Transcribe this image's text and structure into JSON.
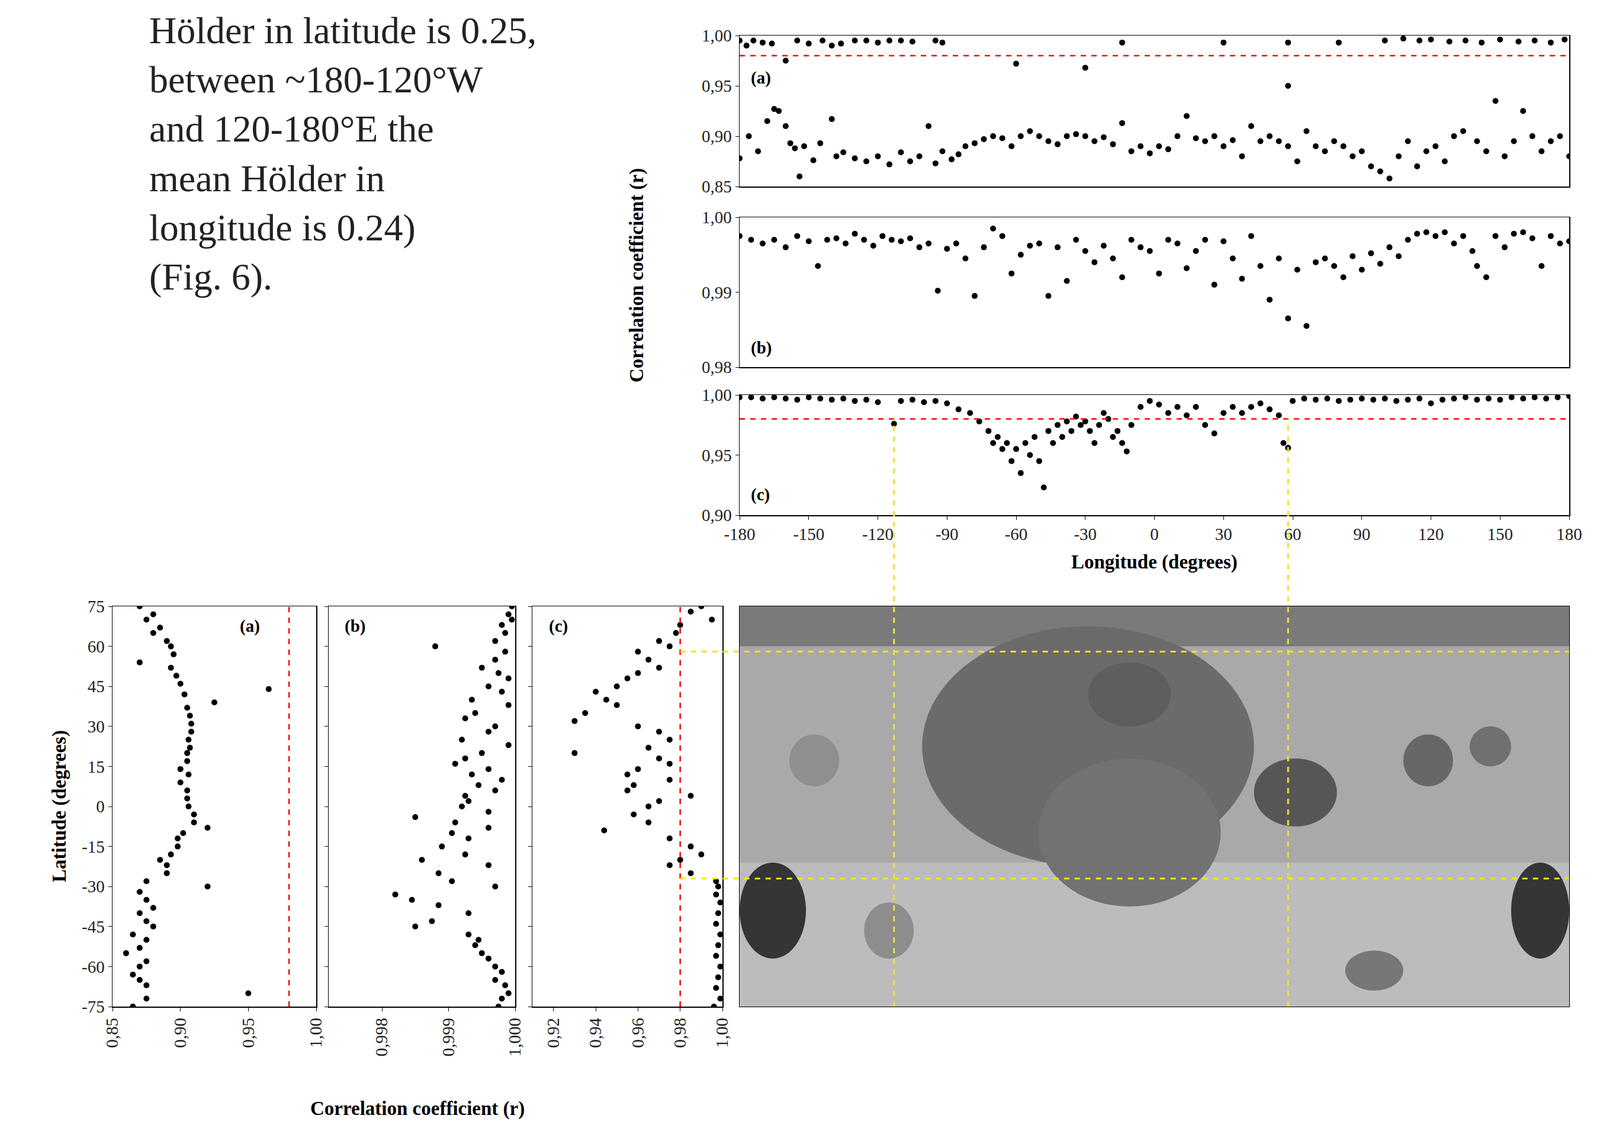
{
  "text_block": [
    "Hölder in latitude is 0.25,",
    "between ~180-120°W",
    "and 120-180°E the",
    "mean Hölder in",
    "longitude is 0.24)",
    "(Fig. 6)."
  ],
  "chart_data": [
    {
      "type": "scatter",
      "label": "(a)",
      "color": "#000000",
      "marker": "circle",
      "grid": false,
      "tick_labels": "y",
      "xlim": [
        -180,
        180
      ],
      "ylim": [
        0.85,
        1.0
      ],
      "yticks": [
        {
          "value": 0.85,
          "label": "0,85"
        },
        {
          "value": 0.9,
          "label": "0,90"
        },
        {
          "value": 0.95,
          "label": "0,95"
        },
        {
          "value": 1.0,
          "label": "1,00"
        }
      ],
      "reference_line": {
        "value": 0.98,
        "color": "#ff0000",
        "line_style": "dashed"
      },
      "x": [
        -180,
        -176,
        -172,
        -168,
        -165,
        -163,
        -160,
        -158,
        -156,
        -154,
        -152,
        -148,
        -145,
        -140,
        -138,
        -135,
        -130,
        -125,
        -120,
        -115,
        -110,
        -106,
        -102,
        -98,
        -95,
        -92,
        -88,
        -85,
        -82,
        -78,
        -74,
        -70,
        -66,
        -62,
        -58,
        -54,
        -50,
        -46,
        -42,
        -38,
        -34,
        -30,
        -26,
        -22,
        -18,
        -14,
        -10,
        -6,
        -2,
        2,
        6,
        10,
        14,
        18,
        22,
        26,
        30,
        34,
        38,
        42,
        46,
        50,
        54,
        58,
        62,
        66,
        70,
        74,
        78,
        82,
        86,
        90,
        94,
        98,
        102,
        106,
        110,
        114,
        118,
        122,
        126,
        130,
        134,
        140,
        144,
        148,
        152,
        156,
        160,
        164,
        168,
        172,
        176,
        180,
        -180,
        -177,
        -174,
        -170,
        -166,
        -160,
        -155,
        -150,
        -144,
        -140,
        -136,
        -130,
        -125,
        -120,
        -115,
        -110,
        -105,
        -95,
        -92,
        -60,
        -30,
        -14,
        30,
        58,
        58,
        80,
        100,
        108,
        115,
        120,
        128,
        135,
        142,
        150,
        158,
        165,
        172,
        178
      ],
      "values": [
        0.878,
        0.9,
        0.885,
        0.915,
        0.927,
        0.925,
        0.91,
        0.893,
        0.888,
        0.86,
        0.89,
        0.876,
        0.893,
        0.917,
        0.88,
        0.884,
        0.878,
        0.875,
        0.88,
        0.872,
        0.884,
        0.875,
        0.88,
        0.91,
        0.873,
        0.885,
        0.877,
        0.882,
        0.89,
        0.893,
        0.897,
        0.9,
        0.898,
        0.89,
        0.9,
        0.905,
        0.9,
        0.895,
        0.892,
        0.9,
        0.902,
        0.9,
        0.895,
        0.899,
        0.892,
        0.913,
        0.885,
        0.89,
        0.883,
        0.89,
        0.887,
        0.9,
        0.92,
        0.898,
        0.895,
        0.9,
        0.89,
        0.896,
        0.88,
        0.91,
        0.895,
        0.9,
        0.895,
        0.89,
        0.875,
        0.905,
        0.89,
        0.885,
        0.895,
        0.89,
        0.88,
        0.885,
        0.87,
        0.865,
        0.858,
        0.88,
        0.895,
        0.87,
        0.885,
        0.89,
        0.875,
        0.9,
        0.905,
        0.895,
        0.885,
        0.935,
        0.88,
        0.895,
        0.925,
        0.9,
        0.885,
        0.895,
        0.9,
        0.88,
        0.995,
        0.99,
        0.995,
        0.993,
        0.992,
        0.975,
        0.995,
        0.992,
        0.995,
        0.99,
        0.992,
        0.995,
        0.995,
        0.993,
        0.995,
        0.995,
        0.994,
        0.995,
        0.993,
        0.972,
        0.968,
        0.993,
        0.993,
        0.993,
        0.95,
        0.993,
        0.995,
        0.997,
        0.995,
        0.996,
        0.994,
        0.995,
        0.993,
        0.996,
        0.994,
        0.995,
        0.993,
        0.996
      ]
    },
    {
      "type": "scatter",
      "label": "(b)",
      "color": "#000000",
      "marker": "circle",
      "grid": false,
      "tick_labels": "y",
      "y_label": "Correlation coefficient (r)",
      "xlim": [
        -180,
        180
      ],
      "ylim": [
        0.98,
        1.0
      ],
      "yticks": [
        {
          "value": 0.98,
          "label": "0,98"
        },
        {
          "value": 0.99,
          "label": "0,99"
        },
        {
          "value": 1.0,
          "label": "1,00"
        }
      ],
      "x": [
        -180,
        -175,
        -170,
        -165,
        -160,
        -155,
        -150,
        -146,
        -142,
        -138,
        -134,
        -130,
        -126,
        -122,
        -118,
        -114,
        -110,
        -106,
        -102,
        -98,
        -94,
        -90,
        -86,
        -82,
        -78,
        -74,
        -70,
        -66,
        -62,
        -58,
        -54,
        -50,
        -46,
        -42,
        -38,
        -34,
        -30,
        -26,
        -22,
        -18,
        -14,
        -10,
        -6,
        -2,
        2,
        6,
        10,
        14,
        18,
        22,
        26,
        30,
        34,
        38,
        42,
        46,
        50,
        54,
        58,
        62,
        66,
        70,
        74,
        78,
        82,
        86,
        90,
        94,
        98,
        102,
        106,
        110,
        114,
        118,
        122,
        126,
        130,
        134,
        138,
        140,
        144,
        148,
        152,
        156,
        160,
        164,
        168,
        172,
        176,
        180
      ],
      "values": [
        0.9975,
        0.997,
        0.9965,
        0.997,
        0.996,
        0.9975,
        0.9968,
        0.9935,
        0.997,
        0.9972,
        0.9965,
        0.9978,
        0.997,
        0.9962,
        0.9975,
        0.997,
        0.9968,
        0.9972,
        0.996,
        0.9965,
        0.9902,
        0.9958,
        0.9965,
        0.9945,
        0.9895,
        0.996,
        0.9985,
        0.9975,
        0.9925,
        0.995,
        0.9962,
        0.9965,
        0.9895,
        0.996,
        0.9915,
        0.997,
        0.9955,
        0.994,
        0.9962,
        0.9945,
        0.992,
        0.997,
        0.996,
        0.9955,
        0.9925,
        0.997,
        0.9965,
        0.9932,
        0.9955,
        0.997,
        0.991,
        0.9968,
        0.9945,
        0.9918,
        0.9975,
        0.9935,
        0.989,
        0.9945,
        0.9865,
        0.993,
        0.9855,
        0.994,
        0.9945,
        0.9935,
        0.992,
        0.9948,
        0.993,
        0.9952,
        0.9938,
        0.996,
        0.9948,
        0.997,
        0.9978,
        0.998,
        0.9975,
        0.998,
        0.9965,
        0.9975,
        0.9955,
        0.9935,
        0.992,
        0.9975,
        0.996,
        0.9978,
        0.998,
        0.9972,
        0.9935,
        0.9975,
        0.9965,
        0.9968
      ]
    },
    {
      "type": "scatter",
      "label": "(c)",
      "color": "#000000",
      "marker": "circle",
      "grid": false,
      "x_label": "Longitude (degrees)",
      "xlim": [
        -180,
        180
      ],
      "ylim": [
        0.9,
        1.0
      ],
      "xticks": [
        -180,
        -150,
        -120,
        -90,
        -60,
        -30,
        0,
        30,
        60,
        90,
        120,
        150,
        180
      ],
      "yticks": [
        {
          "value": 0.9,
          "label": "0,90"
        },
        {
          "value": 0.95,
          "label": "0,95"
        },
        {
          "value": 1.0,
          "label": "1,00"
        }
      ],
      "reference_line": {
        "value": 0.98,
        "color": "#ff0000",
        "line_style": "dashed"
      },
      "x": [
        -180,
        -175,
        -170,
        -165,
        -160,
        -155,
        -150,
        -145,
        -140,
        -135,
        -130,
        -125,
        -120,
        -113,
        -110,
        -105,
        -100,
        -95,
        -90,
        -85,
        -80,
        -76,
        -72,
        -70,
        -68,
        -66,
        -64,
        -62,
        -60,
        -58,
        -56,
        -54,
        -52,
        -50,
        -48,
        -46,
        -44,
        -42,
        -40,
        -38,
        -36,
        -34,
        -32,
        -30,
        -28,
        -26,
        -24,
        -22,
        -20,
        -18,
        -16,
        -14,
        -12,
        -10,
        -6,
        -2,
        2,
        6,
        10,
        14,
        18,
        22,
        26,
        30,
        34,
        38,
        42,
        46,
        50,
        54,
        56,
        58,
        60,
        65,
        70,
        75,
        80,
        85,
        90,
        95,
        100,
        105,
        110,
        115,
        120,
        125,
        130,
        135,
        140,
        145,
        150,
        155,
        160,
        165,
        170,
        175,
        180
      ],
      "values": [
        0.998,
        0.998,
        0.997,
        0.998,
        0.997,
        0.996,
        0.998,
        0.997,
        0.996,
        0.997,
        0.995,
        0.996,
        0.994,
        0.976,
        0.995,
        0.996,
        0.994,
        0.995,
        0.993,
        0.988,
        0.985,
        0.978,
        0.97,
        0.96,
        0.965,
        0.955,
        0.96,
        0.945,
        0.955,
        0.935,
        0.96,
        0.95,
        0.965,
        0.945,
        0.923,
        0.97,
        0.96,
        0.975,
        0.965,
        0.978,
        0.97,
        0.982,
        0.975,
        0.978,
        0.97,
        0.96,
        0.975,
        0.985,
        0.98,
        0.965,
        0.97,
        0.96,
        0.953,
        0.975,
        0.99,
        0.995,
        0.992,
        0.985,
        0.99,
        0.983,
        0.99,
        0.975,
        0.968,
        0.985,
        0.99,
        0.985,
        0.99,
        0.993,
        0.988,
        0.983,
        0.96,
        0.956,
        0.995,
        0.997,
        0.996,
        0.997,
        0.995,
        0.996,
        0.997,
        0.996,
        0.997,
        0.995,
        0.996,
        0.997,
        0.993,
        0.996,
        0.997,
        0.998,
        0.996,
        0.997,
        0.996,
        0.998,
        0.997,
        0.998,
        0.997,
        0.998,
        0.999
      ]
    },
    {
      "type": "scatter",
      "label": "(a)",
      "color": "#000000",
      "marker": "circle",
      "grid": false,
      "y_label": "Latitude (degrees)",
      "xlim": [
        0.85,
        1.0
      ],
      "ylim": [
        -75,
        75
      ],
      "xticks": [
        {
          "value": 0.85,
          "label": "0,85"
        },
        {
          "value": 0.9,
          "label": "0,90"
        },
        {
          "value": 0.95,
          "label": "0,95"
        },
        {
          "value": 1.0,
          "label": "1,00"
        }
      ],
      "yticks": [
        -75,
        -60,
        -45,
        -30,
        -15,
        0,
        15,
        30,
        45,
        60,
        75
      ],
      "reference_line": {
        "value": 0.98,
        "color": "#ff0000",
        "line_style": "dashed"
      },
      "y": [
        75,
        72,
        70,
        67,
        65,
        62,
        60,
        57,
        54,
        52,
        49,
        46,
        44,
        42,
        39,
        37,
        34,
        31,
        28,
        25,
        22,
        20,
        17,
        14,
        12,
        9,
        6,
        3,
        0,
        -3,
        -6,
        -8,
        -10,
        -12,
        -15,
        -18,
        -20,
        -22,
        -25,
        -28,
        -30,
        -32,
        -35,
        -38,
        -40,
        -43,
        -45,
        -48,
        -50,
        -53,
        -55,
        -58,
        -60,
        -63,
        -65,
        -67,
        -70,
        -72,
        -75
      ],
      "values": [
        0.87,
        0.88,
        0.875,
        0.885,
        0.88,
        0.89,
        0.893,
        0.895,
        0.87,
        0.893,
        0.897,
        0.9,
        0.965,
        0.903,
        0.925,
        0.905,
        0.907,
        0.908,
        0.908,
        0.906,
        0.907,
        0.905,
        0.905,
        0.9,
        0.906,
        0.9,
        0.905,
        0.905,
        0.906,
        0.91,
        0.91,
        0.92,
        0.902,
        0.898,
        0.898,
        0.893,
        0.885,
        0.89,
        0.89,
        0.875,
        0.92,
        0.87,
        0.875,
        0.88,
        0.87,
        0.875,
        0.88,
        0.865,
        0.875,
        0.87,
        0.86,
        0.875,
        0.87,
        0.865,
        0.87,
        0.875,
        0.95,
        0.875,
        0.865
      ]
    },
    {
      "type": "scatter",
      "label": "(b)",
      "color": "#000000",
      "marker": "circle",
      "grid": false,
      "tick_labels": "x",
      "x_label": "Correlation coefficient (r)",
      "xlim": [
        0.9972,
        1.0
      ],
      "ylim": [
        -75,
        75
      ],
      "xticks": [
        {
          "value": 0.998,
          "label": "0,998"
        },
        {
          "value": 0.999,
          "label": "0,999"
        },
        {
          "value": 1.0,
          "label": "1,000"
        }
      ],
      "yticks": [
        -75,
        -60,
        -45,
        -30,
        -15,
        0,
        15,
        30,
        45,
        60,
        75
      ],
      "y": [
        75,
        72,
        70,
        68,
        65,
        62,
        60,
        58,
        55,
        52,
        50,
        48,
        45,
        43,
        40,
        38,
        35,
        33,
        30,
        28,
        25,
        23,
        20,
        18,
        16,
        14,
        12,
        10,
        8,
        6,
        4,
        2,
        0,
        -2,
        -4,
        -6,
        -8,
        -10,
        -12,
        -15,
        -18,
        -20,
        -22,
        -25,
        -28,
        -30,
        -33,
        -35,
        -37,
        -40,
        -43,
        -45,
        -48,
        -50,
        -52,
        -55,
        -57,
        -60,
        -62,
        -65,
        -67,
        -70,
        -72,
        -75
      ],
      "values": [
        0.99995,
        0.9999,
        0.99995,
        0.9998,
        0.99985,
        0.9997,
        0.9988,
        0.99985,
        0.9997,
        0.9995,
        0.99975,
        0.9999,
        0.9996,
        0.9998,
        0.99935,
        0.9999,
        0.9994,
        0.99925,
        0.9997,
        0.9996,
        0.9992,
        0.9999,
        0.9995,
        0.99925,
        0.9991,
        0.9996,
        0.99935,
        0.9998,
        0.99945,
        0.9997,
        0.99925,
        0.9993,
        0.9992,
        0.9996,
        0.9985,
        0.9991,
        0.9996,
        0.99905,
        0.9993,
        0.9989,
        0.99925,
        0.9986,
        0.9996,
        0.99885,
        0.99905,
        0.9997,
        0.9982,
        0.99845,
        0.99885,
        0.9993,
        0.99875,
        0.9985,
        0.9993,
        0.99945,
        0.9994,
        0.9995,
        0.9996,
        0.9997,
        0.9998,
        0.9997,
        0.99985,
        0.9999,
        0.9998,
        0.99975
      ]
    },
    {
      "type": "scatter",
      "label": "(c)",
      "color": "#000000",
      "marker": "circle",
      "grid": false,
      "tick_labels": "x",
      "xlim": [
        0.91,
        1.0
      ],
      "ylim": [
        -75,
        75
      ],
      "xticks": [
        {
          "value": 0.92,
          "label": "0,92"
        },
        {
          "value": 0.94,
          "label": "0,94"
        },
        {
          "value": 0.96,
          "label": "0,96"
        },
        {
          "value": 0.98,
          "label": "0,98"
        },
        {
          "value": 1.0,
          "label": "1,00"
        }
      ],
      "yticks": [
        -75,
        -60,
        -45,
        -30,
        -15,
        0,
        15,
        30,
        45,
        60,
        75
      ],
      "reference_line": {
        "value": 0.98,
        "color": "#ff0000",
        "line_style": "dashed"
      },
      "y": [
        75,
        73,
        70,
        68,
        65,
        62,
        60,
        58,
        55,
        52,
        50,
        48,
        45,
        43,
        40,
        38,
        35,
        32,
        30,
        28,
        25,
        22,
        20,
        18,
        16,
        14,
        12,
        10,
        8,
        6,
        4,
        2,
        0,
        -3,
        -6,
        -9,
        -12,
        -15,
        -18,
        -20,
        -22,
        -25,
        -28,
        -30,
        -33,
        -36,
        -40,
        -44,
        -48,
        -52,
        -56,
        -60,
        -64,
        -68,
        -72,
        -75
      ],
      "values": [
        0.99,
        0.985,
        0.995,
        0.98,
        0.978,
        0.97,
        0.975,
        0.96,
        0.965,
        0.97,
        0.96,
        0.955,
        0.95,
        0.94,
        0.945,
        0.95,
        0.935,
        0.93,
        0.96,
        0.97,
        0.975,
        0.965,
        0.93,
        0.97,
        0.975,
        0.96,
        0.955,
        0.975,
        0.958,
        0.955,
        0.985,
        0.97,
        0.965,
        0.958,
        0.965,
        0.944,
        0.975,
        0.985,
        0.99,
        0.98,
        0.975,
        0.985,
        0.997,
        0.998,
        0.997,
        0.999,
        0.998,
        0.997,
        0.999,
        0.998,
        0.997,
        0.999,
        0.998,
        0.997,
        0.999,
        0.996
      ]
    }
  ],
  "map": {
    "guide_lines": {
      "longitudes": [
        -113,
        58
      ],
      "latitudes": [
        58,
        -27
      ],
      "color": "#f2e22a",
      "line_style": "dashed"
    }
  }
}
